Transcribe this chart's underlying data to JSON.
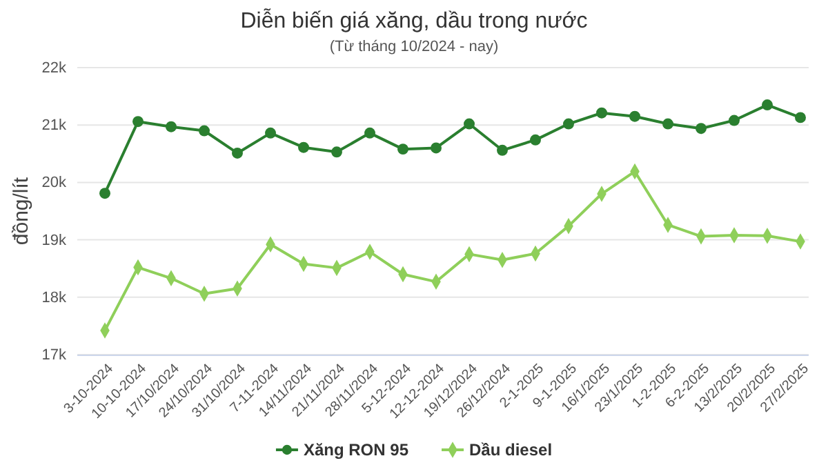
{
  "chart_data": {
    "type": "line",
    "title": "Diễn biến giá xăng, dầu trong nước",
    "subtitle": "(Từ tháng 10/2024 - nay)",
    "ylabel": "đồng/lít",
    "categories": [
      "3-10-2024",
      "10-10-2024",
      "17/10/2024",
      "24/10/2024",
      "31/10/2024",
      "7-11-2024",
      "14/11/2024",
      "21/11/2024",
      "28/11/2024",
      "5-12-2024",
      "12-12-2024",
      "19/12/2024",
      "26/12/2024",
      "2-1-2025",
      "9-1-2025",
      "16/1/2025",
      "23/1/2025",
      "1-2-2025",
      "6-2-2025",
      "13/2/2025",
      "20/2/2025",
      "27/2/2025"
    ],
    "series": [
      {
        "name": "Xăng RON 95",
        "color": "#2a7f2f",
        "marker": "circle",
        "values": [
          19810,
          21060,
          20970,
          20900,
          20510,
          20860,
          20610,
          20530,
          20860,
          20580,
          20600,
          21020,
          20560,
          20740,
          21020,
          21210,
          21150,
          21020,
          20940,
          21080,
          21350,
          21130
        ]
      },
      {
        "name": "Dầu diesel",
        "color": "#8fcf5a",
        "marker": "diamond",
        "values": [
          17420,
          18520,
          18330,
          18060,
          18150,
          18920,
          18580,
          18510,
          18790,
          18400,
          18270,
          18750,
          18650,
          18760,
          19240,
          19800,
          20190,
          19260,
          19060,
          19080,
          19070,
          18970
        ]
      }
    ],
    "ylim": [
      17000,
      22000
    ],
    "yticks": [
      {
        "value": 17000,
        "label": "17k"
      },
      {
        "value": 18000,
        "label": "18k"
      },
      {
        "value": 19000,
        "label": "19k"
      },
      {
        "value": 20000,
        "label": "20k"
      },
      {
        "value": 21000,
        "label": "21k"
      },
      {
        "value": 22000,
        "label": "22k"
      }
    ],
    "grid": "y",
    "legend": "bottom",
    "line_style": "solid"
  }
}
